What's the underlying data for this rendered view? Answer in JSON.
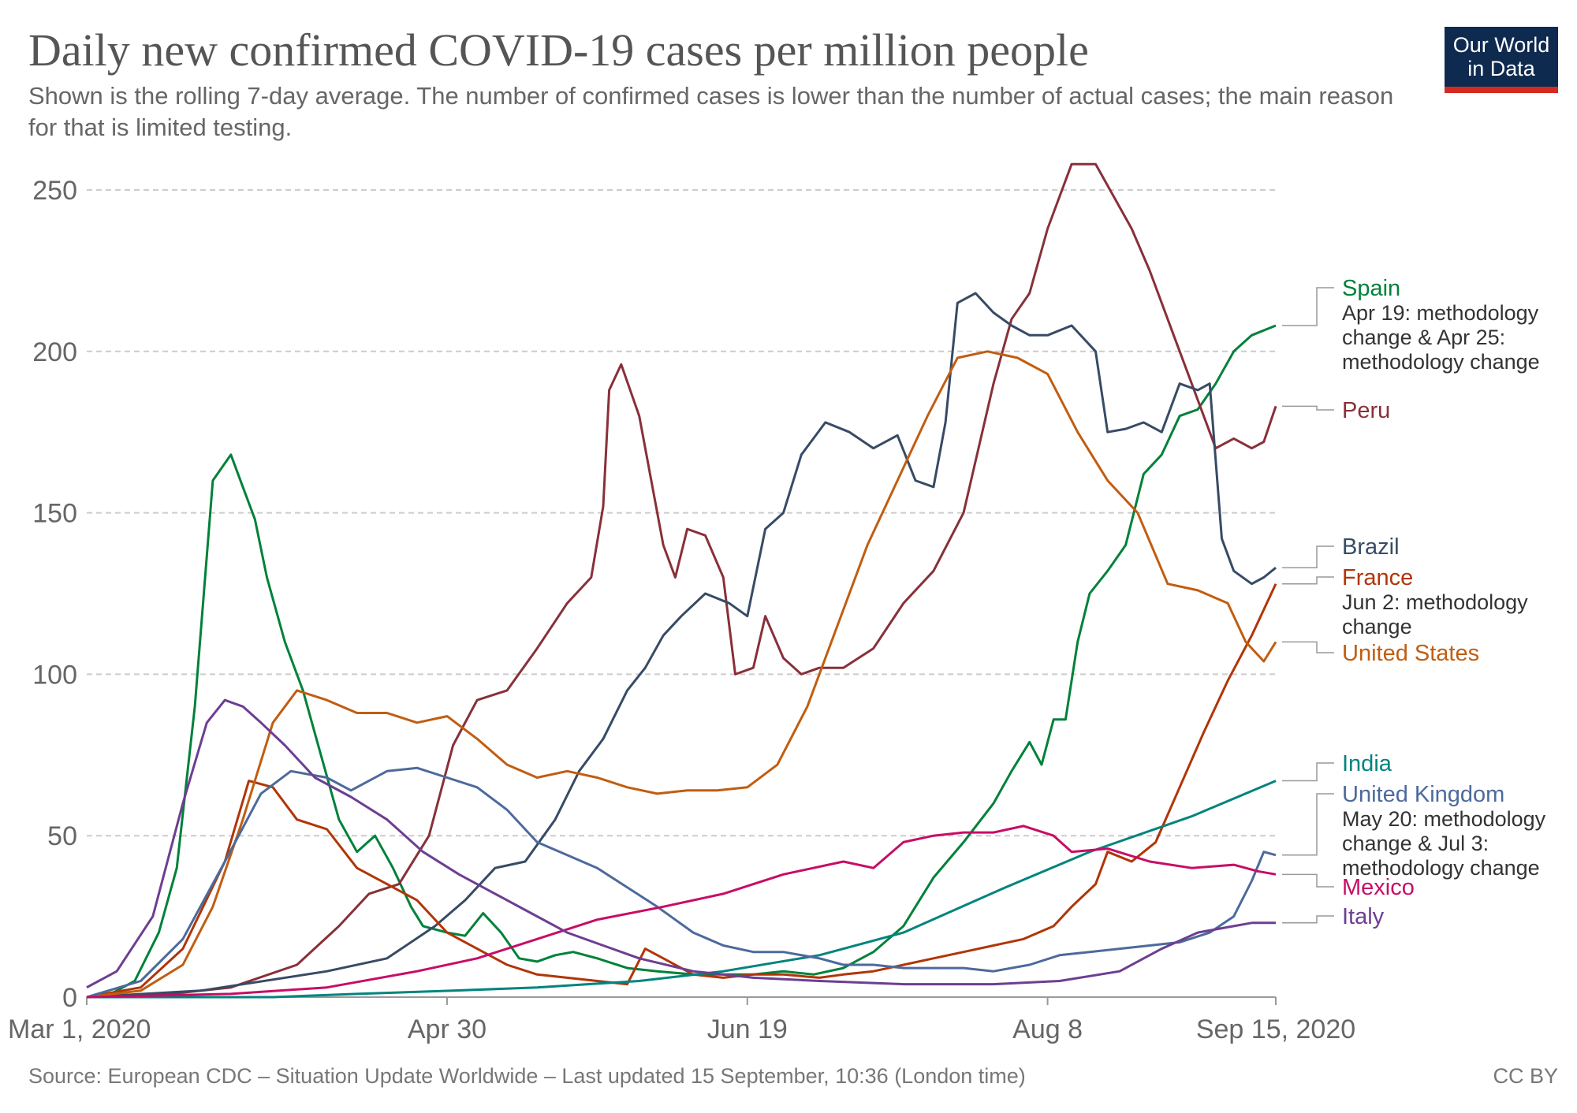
{
  "title": "Daily new confirmed COVID-19 cases per million people",
  "subtitle": "Shown is the rolling 7-day average. The number of confirmed cases is lower than the number of actual cases; the main reason for that is limited testing.",
  "logo": {
    "line1": "Our World",
    "line2": "in Data"
  },
  "source": "Source: European CDC – Situation Update Worldwide – Last updated 15 September, 10:36 (London time)",
  "license": "CC BY",
  "chart_data": {
    "type": "line",
    "x_unit": "date",
    "xlim": [
      "2020-03-01",
      "2020-09-15"
    ],
    "ylim": [
      0,
      260
    ],
    "y_ticks": [
      0,
      50,
      100,
      150,
      200,
      250
    ],
    "x_ticks": [
      {
        "date": "2020-03-01",
        "label": "Mar 1, 2020"
      },
      {
        "date": "2020-04-30",
        "label": "Apr 30"
      },
      {
        "date": "2020-06-19",
        "label": "Jun 19"
      },
      {
        "date": "2020-08-08",
        "label": "Aug 8"
      },
      {
        "date": "2020-09-15",
        "label": "Sep 15, 2020"
      }
    ],
    "grid": "horizontal dashed",
    "legend": "right-side end labels",
    "series": [
      {
        "name": "Spain",
        "color": "#00813a",
        "note": "Apr 19: methodology change & Apr 25: methodology change",
        "x": [
          "2020-03-01",
          "2020-03-05",
          "2020-03-09",
          "2020-03-13",
          "2020-03-16",
          "2020-03-19",
          "2020-03-22",
          "2020-03-25",
          "2020-03-27",
          "2020-03-29",
          "2020-03-31",
          "2020-04-03",
          "2020-04-06",
          "2020-04-09",
          "2020-04-12",
          "2020-04-15",
          "2020-04-18",
          "2020-04-21",
          "2020-04-24",
          "2020-04-26",
          "2020-04-30",
          "2020-05-03",
          "2020-05-06",
          "2020-05-09",
          "2020-05-12",
          "2020-05-15",
          "2020-05-18",
          "2020-05-21",
          "2020-05-25",
          "2020-05-30",
          "2020-06-04",
          "2020-06-10",
          "2020-06-15",
          "2020-06-20",
          "2020-06-25",
          "2020-06-30",
          "2020-07-05",
          "2020-07-10",
          "2020-07-15",
          "2020-07-20",
          "2020-07-25",
          "2020-07-30",
          "2020-08-02",
          "2020-08-05",
          "2020-08-07",
          "2020-08-09",
          "2020-08-11",
          "2020-08-13",
          "2020-08-15",
          "2020-08-18",
          "2020-08-21",
          "2020-08-24",
          "2020-08-27",
          "2020-08-30",
          "2020-09-02",
          "2020-09-05",
          "2020-09-08",
          "2020-09-11",
          "2020-09-15"
        ],
        "y": [
          0,
          1,
          5,
          20,
          40,
          90,
          160,
          168,
          158,
          148,
          130,
          110,
          95,
          75,
          55,
          45,
          50,
          40,
          28,
          22,
          20,
          19,
          26,
          20,
          12,
          11,
          13,
          14,
          12,
          9,
          8,
          7,
          7,
          7,
          8,
          7,
          9,
          14,
          22,
          37,
          48,
          60,
          70,
          79,
          72,
          86,
          86,
          110,
          125,
          132,
          140,
          162,
          168,
          180,
          182,
          190,
          200,
          205,
          208
        ]
      },
      {
        "name": "Peru",
        "color": "#883039",
        "note": "",
        "x": [
          "2020-03-01",
          "2020-03-15",
          "2020-03-25",
          "2020-04-05",
          "2020-04-12",
          "2020-04-17",
          "2020-04-22",
          "2020-04-27",
          "2020-05-01",
          "2020-05-05",
          "2020-05-10",
          "2020-05-15",
          "2020-05-20",
          "2020-05-24",
          "2020-05-26",
          "2020-05-27",
          "2020-05-29",
          "2020-06-01",
          "2020-06-05",
          "2020-06-07",
          "2020-06-09",
          "2020-06-12",
          "2020-06-15",
          "2020-06-17",
          "2020-06-20",
          "2020-06-22",
          "2020-06-25",
          "2020-06-28",
          "2020-07-01",
          "2020-07-05",
          "2020-07-10",
          "2020-07-15",
          "2020-07-20",
          "2020-07-25",
          "2020-07-30",
          "2020-08-02",
          "2020-08-05",
          "2020-08-08",
          "2020-08-12",
          "2020-08-16",
          "2020-08-19",
          "2020-08-22",
          "2020-08-25",
          "2020-08-29",
          "2020-09-02",
          "2020-09-05",
          "2020-09-08",
          "2020-09-11",
          "2020-09-13",
          "2020-09-15"
        ],
        "y": [
          0,
          1,
          3,
          10,
          22,
          32,
          35,
          50,
          78,
          92,
          95,
          108,
          122,
          130,
          152,
          188,
          196,
          180,
          140,
          130,
          145,
          143,
          130,
          100,
          102,
          118,
          105,
          100,
          102,
          102,
          108,
          122,
          132,
          150,
          190,
          210,
          218,
          238,
          258,
          258,
          248,
          238,
          225,
          205,
          185,
          170,
          173,
          170,
          172,
          183
        ]
      },
      {
        "name": "Brazil",
        "color": "#374b65",
        "note": "",
        "x": [
          "2020-03-01",
          "2020-03-20",
          "2020-04-10",
          "2020-04-20",
          "2020-04-28",
          "2020-05-03",
          "2020-05-08",
          "2020-05-13",
          "2020-05-18",
          "2020-05-22",
          "2020-05-26",
          "2020-05-30",
          "2020-06-02",
          "2020-06-05",
          "2020-06-08",
          "2020-06-12",
          "2020-06-16",
          "2020-06-19",
          "2020-06-22",
          "2020-06-25",
          "2020-06-28",
          "2020-07-02",
          "2020-07-06",
          "2020-07-10",
          "2020-07-14",
          "2020-07-17",
          "2020-07-20",
          "2020-07-22",
          "2020-07-24",
          "2020-07-27",
          "2020-07-30",
          "2020-08-02",
          "2020-08-05",
          "2020-08-08",
          "2020-08-12",
          "2020-08-16",
          "2020-08-18",
          "2020-08-21",
          "2020-08-24",
          "2020-08-27",
          "2020-08-30",
          "2020-09-02",
          "2020-09-04",
          "2020-09-06",
          "2020-09-08",
          "2020-09-11",
          "2020-09-13",
          "2020-09-15"
        ],
        "y": [
          0,
          2,
          8,
          12,
          22,
          30,
          40,
          42,
          55,
          70,
          80,
          95,
          102,
          112,
          118,
          125,
          122,
          118,
          145,
          150,
          168,
          178,
          175,
          170,
          174,
          160,
          158,
          178,
          215,
          218,
          212,
          208,
          205,
          205,
          208,
          200,
          175,
          176,
          178,
          175,
          190,
          188,
          190,
          142,
          132,
          128,
          130,
          133
        ]
      },
      {
        "name": "France",
        "color": "#b13507",
        "note": "Jun 2: methodology change",
        "x": [
          "2020-03-01",
          "2020-03-10",
          "2020-03-17",
          "2020-03-24",
          "2020-03-28",
          "2020-04-01",
          "2020-04-05",
          "2020-04-10",
          "2020-04-15",
          "2020-04-20",
          "2020-04-25",
          "2020-04-30",
          "2020-05-05",
          "2020-05-10",
          "2020-05-15",
          "2020-05-20",
          "2020-05-25",
          "2020-05-30",
          "2020-06-02",
          "2020-06-05",
          "2020-06-10",
          "2020-06-15",
          "2020-06-20",
          "2020-06-25",
          "2020-07-01",
          "2020-07-05",
          "2020-07-10",
          "2020-07-15",
          "2020-07-20",
          "2020-07-25",
          "2020-07-30",
          "2020-08-04",
          "2020-08-09",
          "2020-08-12",
          "2020-08-16",
          "2020-08-18",
          "2020-08-22",
          "2020-08-26",
          "2020-08-30",
          "2020-09-03",
          "2020-09-07",
          "2020-09-11",
          "2020-09-15"
        ],
        "y": [
          0,
          3,
          15,
          42,
          67,
          65,
          55,
          52,
          40,
          35,
          30,
          20,
          15,
          10,
          7,
          6,
          5,
          4,
          15,
          12,
          7,
          6,
          7,
          7,
          6,
          7,
          8,
          10,
          12,
          14,
          16,
          18,
          22,
          28,
          35,
          45,
          42,
          48,
          65,
          82,
          98,
          112,
          128
        ]
      },
      {
        "name": "United States",
        "color": "#c15d11",
        "note": "",
        "x": [
          "2020-03-01",
          "2020-03-10",
          "2020-03-17",
          "2020-03-22",
          "2020-03-27",
          "2020-04-01",
          "2020-04-05",
          "2020-04-10",
          "2020-04-15",
          "2020-04-20",
          "2020-04-25",
          "2020-04-30",
          "2020-05-05",
          "2020-05-10",
          "2020-05-15",
          "2020-05-20",
          "2020-05-25",
          "2020-05-30",
          "2020-06-04",
          "2020-06-09",
          "2020-06-14",
          "2020-06-19",
          "2020-06-24",
          "2020-06-29",
          "2020-07-04",
          "2020-07-09",
          "2020-07-14",
          "2020-07-19",
          "2020-07-24",
          "2020-07-29",
          "2020-08-03",
          "2020-08-08",
          "2020-08-13",
          "2020-08-18",
          "2020-08-23",
          "2020-08-28",
          "2020-09-02",
          "2020-09-07",
          "2020-09-10",
          "2020-09-13",
          "2020-09-15"
        ],
        "y": [
          0,
          2,
          10,
          28,
          55,
          85,
          95,
          92,
          88,
          88,
          85,
          87,
          80,
          72,
          68,
          70,
          68,
          65,
          63,
          64,
          64,
          65,
          72,
          90,
          115,
          140,
          160,
          180,
          198,
          200,
          198,
          193,
          175,
          160,
          150,
          128,
          126,
          122,
          110,
          104,
          110
        ]
      },
      {
        "name": "India",
        "color": "#00847e",
        "note": "",
        "x": [
          "2020-03-01",
          "2020-04-01",
          "2020-04-15",
          "2020-05-01",
          "2020-05-15",
          "2020-06-01",
          "2020-06-15",
          "2020-07-01",
          "2020-07-15",
          "2020-08-01",
          "2020-08-15",
          "2020-09-01",
          "2020-09-15"
        ],
        "y": [
          0,
          0,
          1,
          2,
          3,
          5,
          8,
          13,
          20,
          34,
          45,
          56,
          67
        ]
      },
      {
        "name": "United Kingdom",
        "color": "#4c6a9c",
        "note": "May 20: methodology change & Jul 3: methodology change",
        "x": [
          "2020-03-01",
          "2020-03-10",
          "2020-03-17",
          "2020-03-24",
          "2020-03-30",
          "2020-04-04",
          "2020-04-10",
          "2020-04-14",
          "2020-04-20",
          "2020-04-25",
          "2020-04-30",
          "2020-05-05",
          "2020-05-10",
          "2020-05-15",
          "2020-05-20",
          "2020-05-25",
          "2020-05-30",
          "2020-06-04",
          "2020-06-10",
          "2020-06-15",
          "2020-06-20",
          "2020-06-25",
          "2020-07-01",
          "2020-07-05",
          "2020-07-10",
          "2020-07-15",
          "2020-07-20",
          "2020-07-25",
          "2020-07-30",
          "2020-08-05",
          "2020-08-10",
          "2020-08-15",
          "2020-08-20",
          "2020-08-25",
          "2020-08-30",
          "2020-09-04",
          "2020-09-08",
          "2020-09-11",
          "2020-09-13",
          "2020-09-15"
        ],
        "y": [
          0,
          5,
          18,
          42,
          63,
          70,
          68,
          64,
          70,
          71,
          68,
          65,
          58,
          48,
          44,
          40,
          34,
          28,
          20,
          16,
          14,
          14,
          12,
          10,
          10,
          9,
          9,
          9,
          8,
          10,
          13,
          14,
          15,
          16,
          17,
          20,
          25,
          36,
          45,
          44
        ]
      },
      {
        "name": "Mexico",
        "color": "#c70d66",
        "note": "",
        "x": [
          "2020-03-01",
          "2020-03-25",
          "2020-04-10",
          "2020-04-25",
          "2020-05-05",
          "2020-05-15",
          "2020-05-25",
          "2020-06-05",
          "2020-06-15",
          "2020-06-25",
          "2020-07-05",
          "2020-07-10",
          "2020-07-15",
          "2020-07-20",
          "2020-07-25",
          "2020-07-30",
          "2020-08-04",
          "2020-08-09",
          "2020-08-12",
          "2020-08-18",
          "2020-08-25",
          "2020-09-01",
          "2020-09-08",
          "2020-09-12",
          "2020-09-15"
        ],
        "y": [
          0,
          1,
          3,
          8,
          12,
          18,
          24,
          28,
          32,
          38,
          42,
          40,
          48,
          50,
          51,
          51,
          53,
          50,
          45,
          46,
          42,
          40,
          41,
          39,
          38
        ]
      },
      {
        "name": "Italy",
        "color": "#6d3e91",
        "note": "",
        "x": [
          "2020-03-01",
          "2020-03-06",
          "2020-03-12",
          "2020-03-17",
          "2020-03-21",
          "2020-03-24",
          "2020-03-27",
          "2020-03-30",
          "2020-04-03",
          "2020-04-08",
          "2020-04-14",
          "2020-04-20",
          "2020-04-26",
          "2020-05-02",
          "2020-05-08",
          "2020-05-14",
          "2020-05-20",
          "2020-05-26",
          "2020-06-01",
          "2020-06-10",
          "2020-06-20",
          "2020-07-01",
          "2020-07-15",
          "2020-07-30",
          "2020-08-10",
          "2020-08-20",
          "2020-08-27",
          "2020-09-02",
          "2020-09-08",
          "2020-09-11",
          "2020-09-15"
        ],
        "y": [
          3,
          8,
          25,
          60,
          85,
          92,
          90,
          85,
          78,
          68,
          62,
          55,
          45,
          38,
          32,
          26,
          20,
          16,
          12,
          8,
          6,
          5,
          4,
          4,
          5,
          8,
          15,
          20,
          22,
          23,
          23
        ]
      }
    ]
  }
}
